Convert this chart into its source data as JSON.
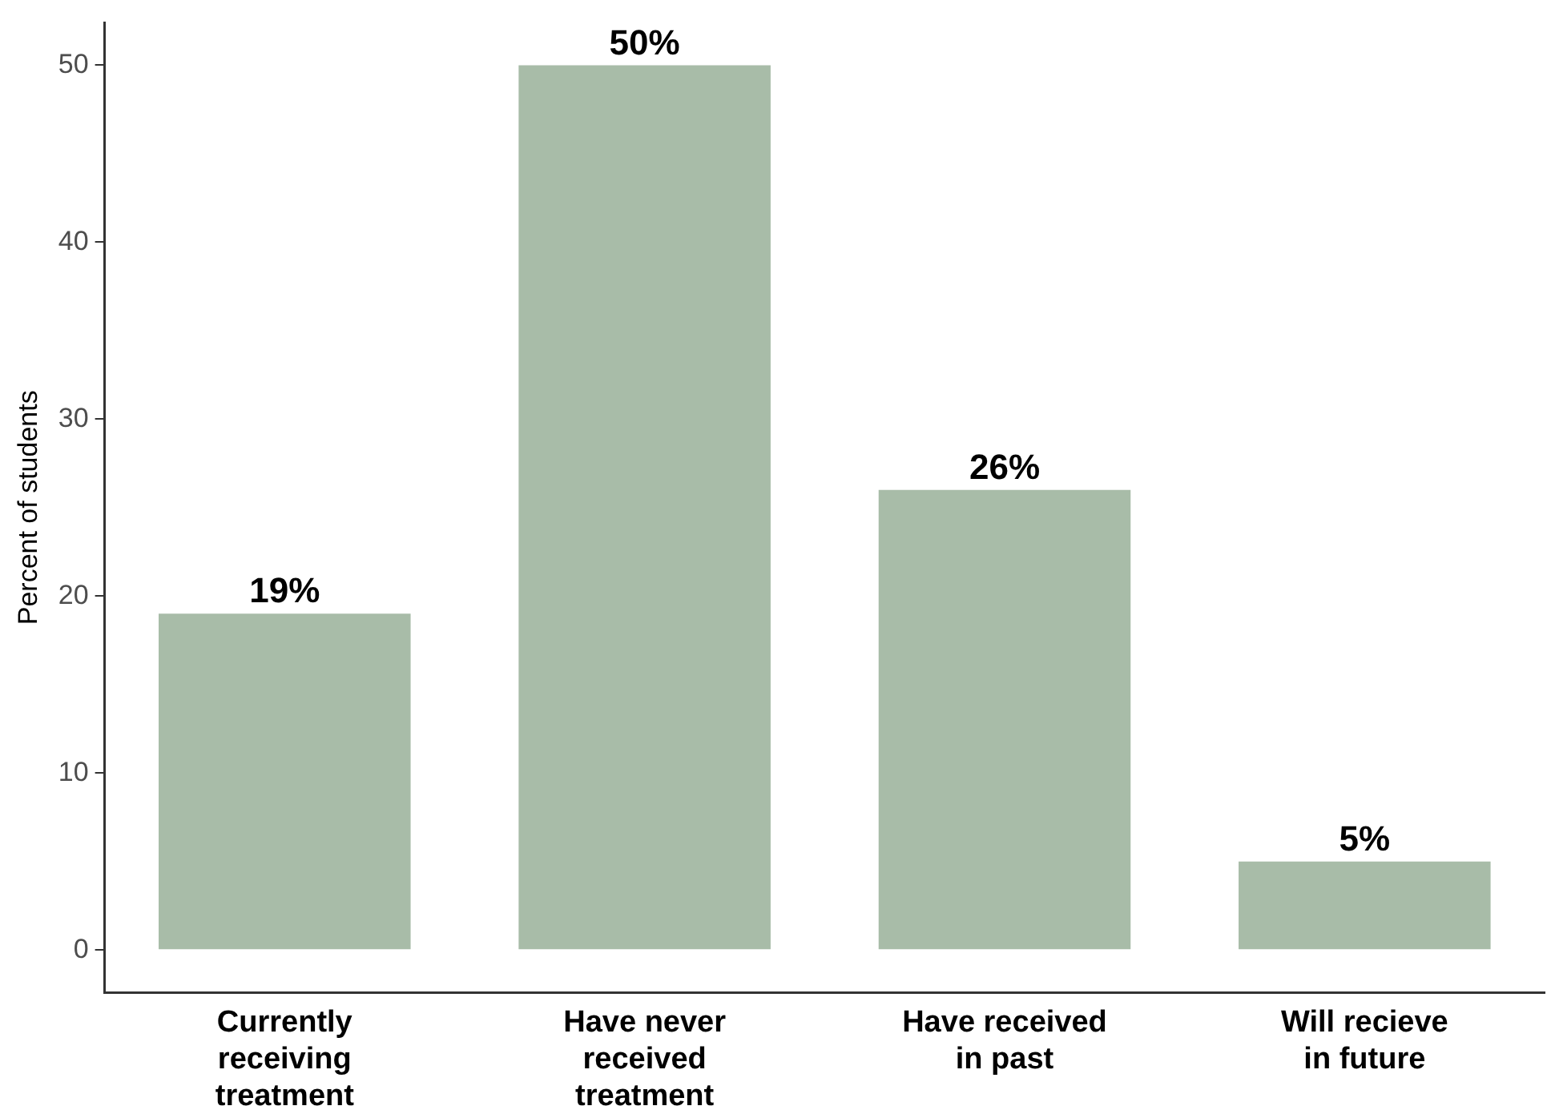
{
  "chart_data": {
    "type": "bar",
    "ylabel": "Percent of students",
    "categories": [
      "Currently\nreceiving\ntreatment",
      "Have never\nreceived\ntreatment",
      "Have received\nin past",
      "Will recieve\nin future"
    ],
    "values": [
      19,
      50,
      26,
      5
    ],
    "value_labels": [
      "19%",
      "50%",
      "26%",
      "5%"
    ],
    "color": "#a8bca8",
    "ylim": [
      -2.4,
      52.4
    ],
    "yticks": [
      0,
      10,
      20,
      30,
      40,
      50
    ],
    "grid": false,
    "legend": false
  }
}
